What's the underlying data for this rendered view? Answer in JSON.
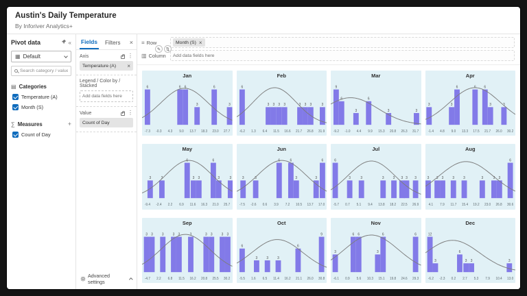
{
  "header": {
    "title": "Austin's Daily Temperature",
    "subtitle": "By Inforiver Analytics+"
  },
  "pivot_panel": {
    "title": "Pivot data",
    "preset": "Default",
    "search_placeholder": "Search category / value",
    "categories_label": "Categories",
    "categories": [
      {
        "label": "Temperature (A)",
        "checked": true
      },
      {
        "label": "Month (S)",
        "checked": true
      }
    ],
    "measures_label": "Measures",
    "measures": [
      {
        "label": "Count of Day",
        "checked": true
      }
    ]
  },
  "fields_panel": {
    "tab_fields": "Fields",
    "tab_filters": "Filters",
    "axis_label": "Axis",
    "axis_chip": "Temperature (A)",
    "legend_label": "Legend / Color by / Stacked",
    "legend_placeholder": "Add data fields here",
    "value_label": "Value",
    "value_chip": "Count of Day",
    "advanced_label": "Advanced settings"
  },
  "shelf": {
    "row_label": "Row",
    "row_chip": "Month (S)",
    "column_label": "Column",
    "column_placeholder": "Add data fields here"
  },
  "colors": {
    "bar": "#827AE8",
    "panel_bg": "#E1F1F6",
    "accent": "#0F6CBD",
    "curve": "#7D7D7D",
    "bar_label": "#4D4D4D",
    "x_label": "#5F6B70"
  },
  "chart_data": {
    "type": "bar",
    "subtype": "histogram-small-multiples",
    "title": "Austin's Daily Temperature",
    "value_field": "Count of Day",
    "axis_field": "Temperature (A)",
    "group_field": "Month (S)",
    "legend_position": "none",
    "grid": false,
    "months": [
      {
        "name": "Jan",
        "x_labels": [
          "-7.3",
          "-0.3",
          "4.3",
          "9.0",
          "13.7",
          "18.3",
          "23.0",
          "27.7"
        ],
        "y_max": 6.8,
        "bars": [
          [
            0.06,
            6
          ],
          [
            0.42,
            6
          ],
          [
            0.48,
            6
          ],
          [
            0.61,
            3
          ],
          [
            0.8,
            6
          ],
          [
            0.97,
            3
          ]
        ],
        "curve": {
          "mean": 0.47,
          "sd": 0.26,
          "peak": 6.2
        }
      },
      {
        "name": "Feb",
        "x_labels": [
          "-6.2",
          "1.3",
          "6.4",
          "11.5",
          "16.6",
          "21.7",
          "26.8",
          "31.9"
        ],
        "y_max": 6.8,
        "bars": [
          [
            0.06,
            6
          ],
          [
            0.35,
            3
          ],
          [
            0.41,
            3
          ],
          [
            0.47,
            3
          ],
          [
            0.53,
            3
          ],
          [
            0.7,
            3
          ],
          [
            0.76,
            3
          ],
          [
            0.82,
            3
          ],
          [
            0.95,
            3
          ]
        ],
        "curve": {
          "mean": 0.42,
          "sd": 0.24,
          "peak": 6.3
        }
      },
      {
        "name": "Mar",
        "x_labels": [
          "-9.2",
          "-1.0",
          "4.4",
          "9.9",
          "15.3",
          "20.8",
          "26.3",
          "31.7"
        ],
        "y_max": 10.2,
        "bars": [
          [
            0.06,
            9
          ],
          [
            0.12,
            6
          ],
          [
            0.28,
            3
          ],
          [
            0.42,
            6
          ],
          [
            0.64,
            3
          ],
          [
            0.95,
            3
          ]
        ],
        "curve": {
          "mean": 0.22,
          "sd": 0.3,
          "peak": 6.9
        }
      },
      {
        "name": "Apr",
        "x_labels": [
          "-1.4",
          "4.8",
          "9.0",
          "13.3",
          "17.5",
          "21.7",
          "26.0",
          "30.2"
        ],
        "y_max": 6.8,
        "bars": [
          [
            0.04,
            3
          ],
          [
            0.29,
            3
          ],
          [
            0.35,
            6
          ],
          [
            0.55,
            6
          ],
          [
            0.66,
            6
          ],
          [
            0.72,
            3
          ],
          [
            0.87,
            3
          ]
        ],
        "curve": {
          "mean": 0.55,
          "sd": 0.28,
          "peak": 6.3
        }
      },
      {
        "name": "May",
        "x_labels": [
          "-9.4",
          "-2.4",
          "2.2",
          "6.9",
          "11.6",
          "16.3",
          "21.0",
          "25.7"
        ],
        "y_max": 6.8,
        "bars": [
          [
            0.09,
            3
          ],
          [
            0.22,
            3
          ],
          [
            0.5,
            6
          ],
          [
            0.57,
            3
          ],
          [
            0.63,
            3
          ],
          [
            0.79,
            6
          ],
          [
            0.85,
            3
          ],
          [
            0.98,
            3
          ]
        ],
        "curve": {
          "mean": 0.52,
          "sd": 0.26,
          "peak": 6.4
        }
      },
      {
        "name": "Jun",
        "x_labels": [
          "-7.5",
          "-2.6",
          "0.6",
          "3.9",
          "7.2",
          "10.5",
          "13.7",
          "17.0"
        ],
        "y_max": 6.8,
        "bars": [
          [
            0.07,
            3
          ],
          [
            0.21,
            3
          ],
          [
            0.47,
            6
          ],
          [
            0.6,
            6
          ],
          [
            0.66,
            3
          ],
          [
            0.88,
            3
          ],
          [
            0.95,
            6
          ]
        ],
        "curve": {
          "mean": 0.5,
          "sd": 0.27,
          "peak": 6.4
        }
      },
      {
        "name": "Jul",
        "x_labels": [
          "-5.7",
          "0.7",
          "5.1",
          "9.4",
          "13.8",
          "18.2",
          "22.5",
          "26.9"
        ],
        "y_max": 6.8,
        "bars": [
          [
            0.05,
            6
          ],
          [
            0.21,
            3
          ],
          [
            0.34,
            3
          ],
          [
            0.58,
            3
          ],
          [
            0.7,
            3
          ],
          [
            0.79,
            3
          ],
          [
            0.84,
            3
          ],
          [
            0.94,
            3
          ]
        ],
        "curve": {
          "mean": 0.45,
          "sd": 0.26,
          "peak": 6.3
        }
      },
      {
        "name": "Aug",
        "x_labels": [
          "4.1",
          "7.9",
          "11.7",
          "15.4",
          "19.2",
          "23.0",
          "26.8",
          "30.6"
        ],
        "y_max": 6.8,
        "bars": [
          [
            0.03,
            3
          ],
          [
            0.13,
            3
          ],
          [
            0.19,
            3
          ],
          [
            0.31,
            3
          ],
          [
            0.43,
            3
          ],
          [
            0.63,
            3
          ],
          [
            0.76,
            3
          ],
          [
            0.82,
            3
          ],
          [
            0.94,
            6
          ]
        ],
        "curve": {
          "mean": 0.45,
          "sd": 0.3,
          "peak": 6.2
        }
      },
      {
        "name": "Sep",
        "x_labels": [
          "-4.7",
          "2.2",
          "6.8",
          "11.5",
          "16.2",
          "20.8",
          "25.5",
          "30.2"
        ],
        "y_max": 3.4,
        "bars": [
          [
            0.05,
            3
          ],
          [
            0.11,
            3
          ],
          [
            0.23,
            3
          ],
          [
            0.35,
            3
          ],
          [
            0.41,
            3
          ],
          [
            0.54,
            3
          ],
          [
            0.71,
            3
          ],
          [
            0.77,
            3
          ],
          [
            0.89,
            3
          ],
          [
            0.95,
            3
          ]
        ],
        "curve": {
          "mean": 0.48,
          "sd": 0.27,
          "peak": 3.2
        }
      },
      {
        "name": "Oct",
        "x_labels": [
          "-5.5",
          "1.6",
          "6.5",
          "11.4",
          "16.2",
          "21.1",
          "26.0",
          "30.8"
        ],
        "y_max": 10.2,
        "bars": [
          [
            0.06,
            6
          ],
          [
            0.22,
            3
          ],
          [
            0.34,
            3
          ],
          [
            0.46,
            3
          ],
          [
            0.68,
            6
          ],
          [
            0.94,
            9
          ]
        ],
        "curve": {
          "mean": 0.45,
          "sd": 0.28,
          "peak": 8.3
        }
      },
      {
        "name": "Nov",
        "x_labels": [
          "-6.1",
          "0.9",
          "5.6",
          "10.3",
          "15.1",
          "19.8",
          "24.6",
          "29.3"
        ],
        "y_max": 6.8,
        "bars": [
          [
            0.05,
            3
          ],
          [
            0.25,
            6
          ],
          [
            0.31,
            6
          ],
          [
            0.52,
            3
          ],
          [
            0.58,
            6
          ],
          [
            0.94,
            6
          ]
        ],
        "curve": {
          "mean": 0.45,
          "sd": 0.3,
          "peak": 6.3
        }
      },
      {
        "name": "Dec",
        "x_labels": [
          "-6.2",
          "-2.3",
          "0.2",
          "2.7",
          "5.3",
          "7.9",
          "10.4",
          "13.0"
        ],
        "y_max": 13.6,
        "bars": [
          [
            0.05,
            12
          ],
          [
            0.11,
            3
          ],
          [
            0.38,
            6
          ],
          [
            0.45,
            3
          ],
          [
            0.51,
            3
          ],
          [
            0.93,
            3
          ]
        ],
        "curve": {
          "mean": 0.3,
          "sd": 0.3,
          "peak": 10.8
        }
      }
    ]
  }
}
